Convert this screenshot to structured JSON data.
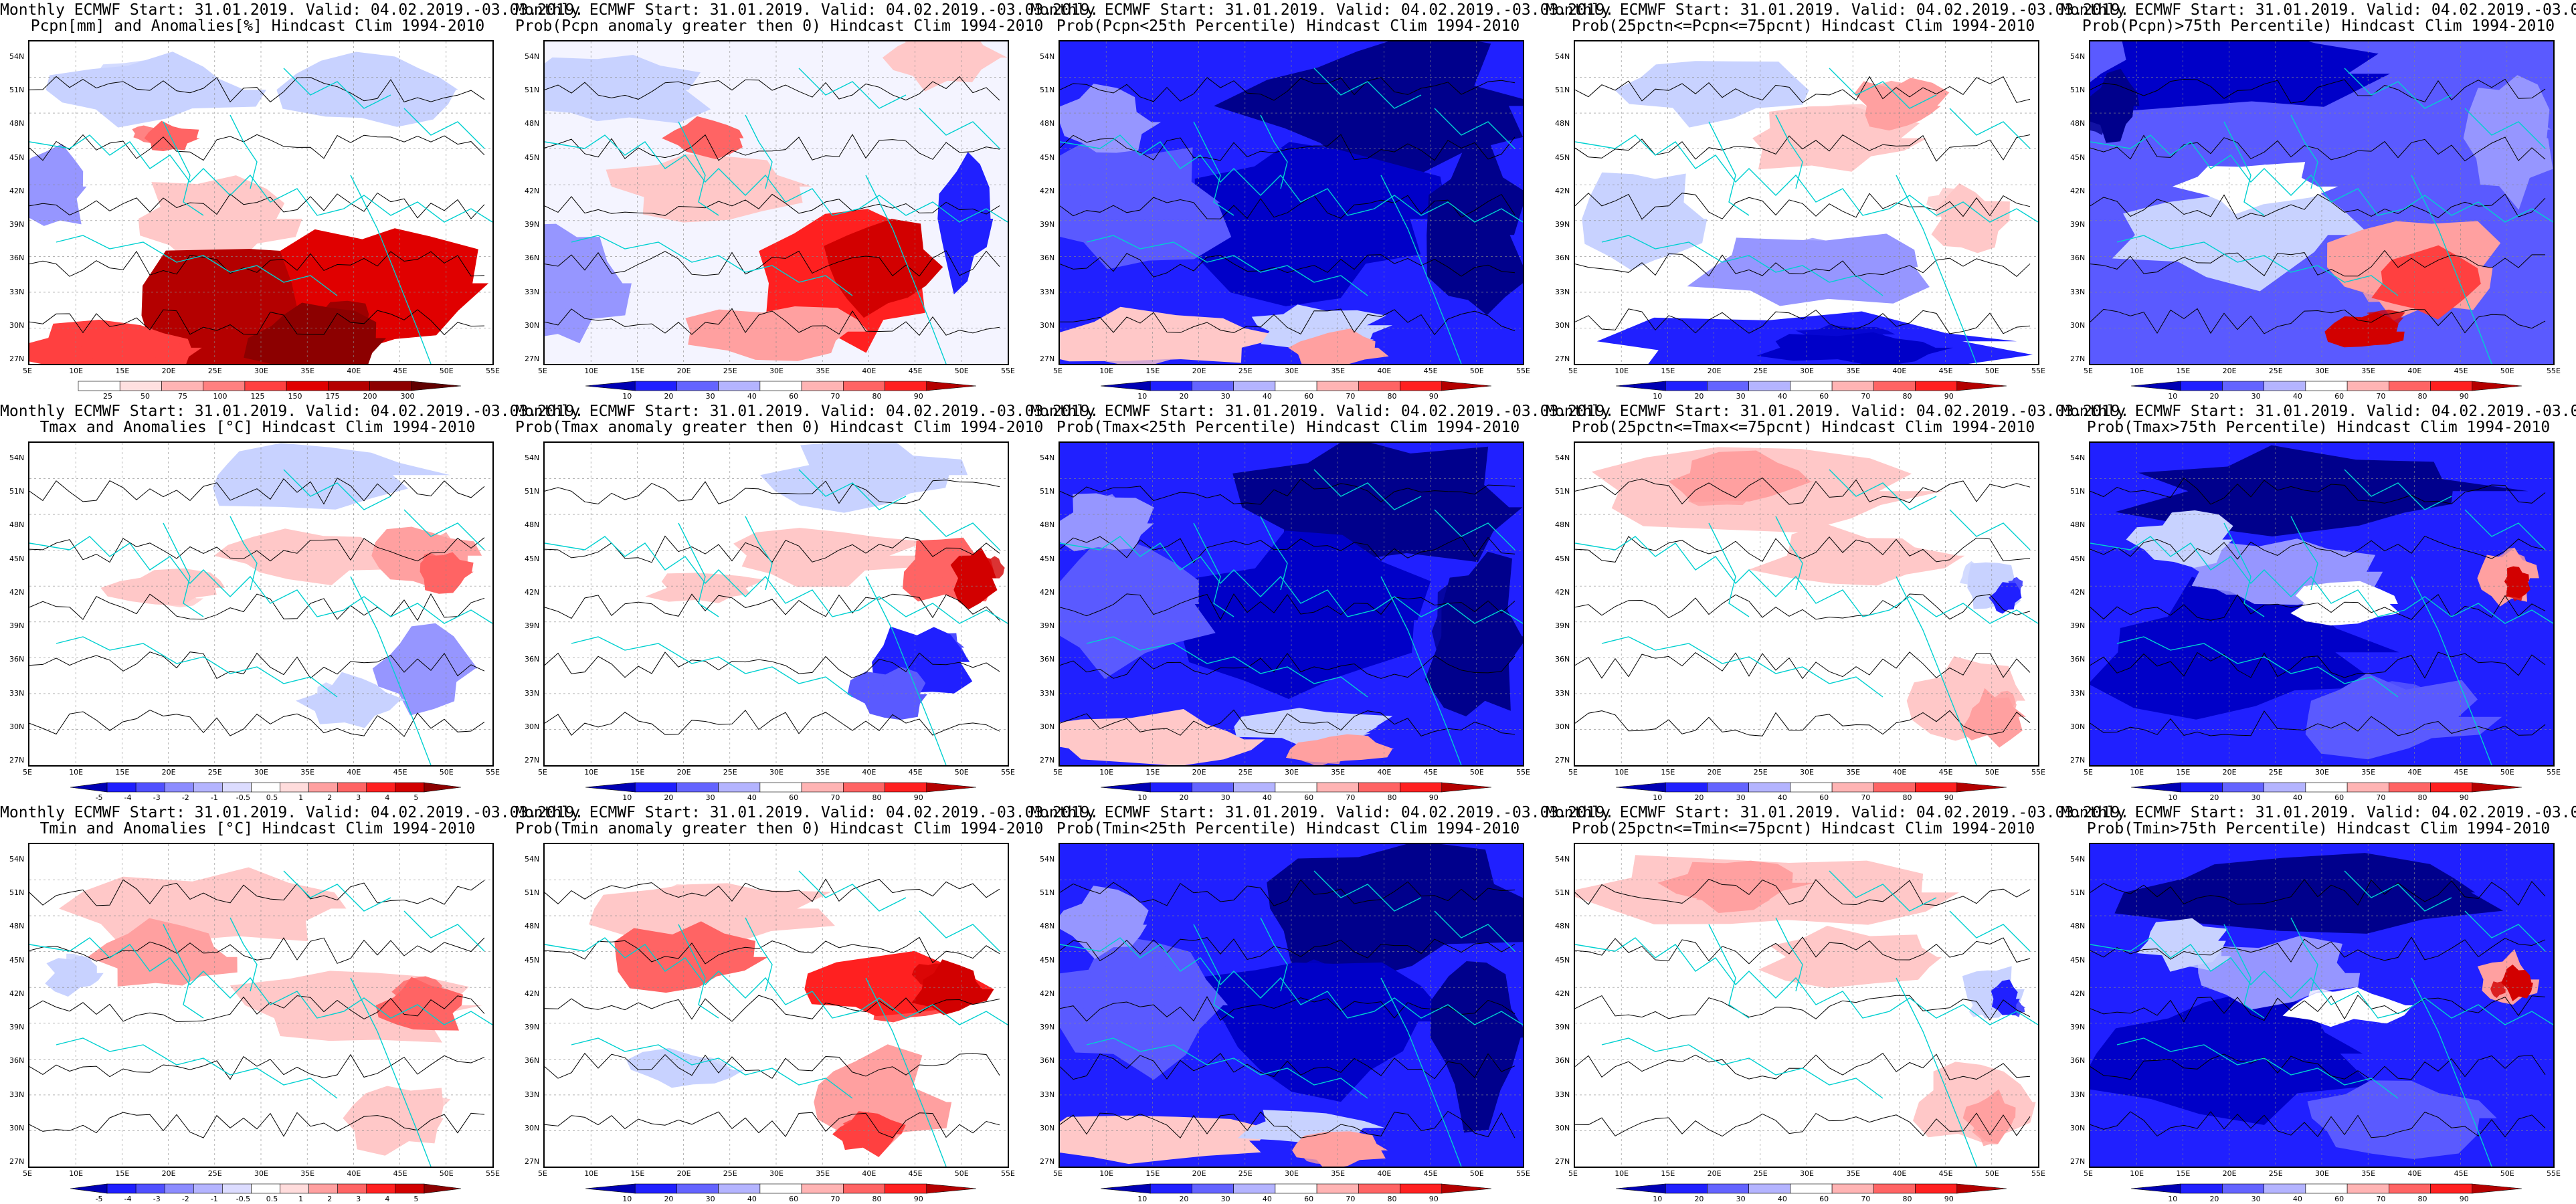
{
  "header": "Monthly ECMWF Start: 31.01.2019. Valid: 04.02.2019.-03.03.2019.",
  "lat_labels": [
    "54N",
    "51N",
    "48N",
    "45N",
    "42N",
    "39N",
    "36N",
    "33N",
    "30N",
    "27N"
  ],
  "lon_labels": [
    "5E",
    "10E",
    "15E",
    "20E",
    "25E",
    "30E",
    "35E",
    "40E",
    "45E",
    "50E",
    "55E"
  ],
  "scales": {
    "pcpn": [
      "25",
      "50",
      "75",
      "100",
      "125",
      "150",
      "175",
      "200",
      "300"
    ],
    "prob": [
      "10",
      "20",
      "30",
      "40",
      "60",
      "70",
      "80",
      "90"
    ],
    "temp": [
      "-5",
      "-4",
      "-3",
      "-2",
      "-1",
      "-0.5",
      "0.5",
      "1",
      "2",
      "3",
      "4",
      "5"
    ]
  },
  "colors": {
    "deep_blue": "#0000c8",
    "mid_blue": "#3a3aff",
    "light_blue": "#c8d2ff",
    "white": "#ffffff",
    "light_red": "#ffc8c8",
    "mid_red": "#ff4040",
    "deep_red": "#b40000",
    "coast": "#00d0d0",
    "contour": "#000000"
  },
  "panels": [
    {
      "title": "Pcpn[mm] and Anomalies[%] Hindcast Clim 1994-2010",
      "scale": "pcpn",
      "theme": "pcpn_anom"
    },
    {
      "title": "Prob(Pcpn anomaly greater then 0) Hindcast Clim 1994-2010",
      "scale": "prob",
      "theme": "pcpn_prob"
    },
    {
      "title": "Prob(Pcpn<25th Percentile) Hindcast Clim 1994-2010",
      "scale": "prob",
      "theme": "blue_strong"
    },
    {
      "title": "Prob(25pctn<=Pcpn<=75pcnt) Hindcast Clim 1994-2010",
      "scale": "prob",
      "theme": "mixed_light"
    },
    {
      "title": "Prob(Pcpn)>75th Percentile) Hindcast Clim 1994-2010",
      "scale": "prob",
      "theme": "blue_redspot"
    },
    {
      "title": "Tmax and Anomalies [°C] Hindcast Clim 1994-2010",
      "scale": "temp",
      "theme": "temp_anom"
    },
    {
      "title": "Prob(Tmax anomaly greater then 0) Hindcast Clim 1994-2010",
      "scale": "prob",
      "theme": "temp_prob"
    },
    {
      "title": "Prob(Tmax<25th Percentile) Hindcast Clim 1994-2010",
      "scale": "prob",
      "theme": "blue_strong"
    },
    {
      "title": "Prob(25pctn<=Tmax<=75pcnt) Hindcast Clim 1994-2010",
      "scale": "prob",
      "theme": "red_light"
    },
    {
      "title": "Prob(Tmax>75th Percentile) Hindcast Clim 1994-2010",
      "scale": "prob",
      "theme": "blue_redspot2"
    },
    {
      "title": "Tmin and Anomalies [°C] Hindcast Clim 1994-2010",
      "scale": "temp",
      "theme": "temp_anom_red"
    },
    {
      "title": "Prob(Tmin anomaly greater then 0) Hindcast Clim 1994-2010",
      "scale": "prob",
      "theme": "temp_prob_red"
    },
    {
      "title": "Prob(Tmin<25th Percentile) Hindcast Clim 1994-2010",
      "scale": "prob",
      "theme": "blue_strong"
    },
    {
      "title": "Prob(25pctn<=Tmin<=75pcnt) Hindcast Clim 1994-2010",
      "scale": "prob",
      "theme": "red_light"
    },
    {
      "title": "Prob(Tmin>75th Percentile) Hindcast Clim 1994-2010",
      "scale": "prob",
      "theme": "blue_redspot2"
    }
  ]
}
